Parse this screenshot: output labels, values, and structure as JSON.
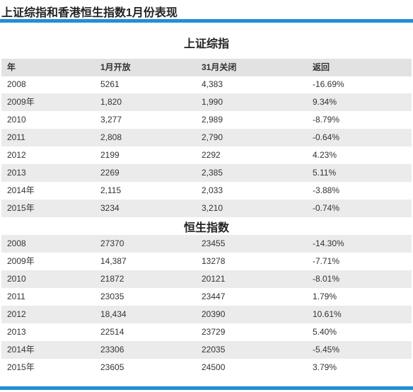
{
  "header": {
    "title": "上证综指和香港恒生指数1月份表现"
  },
  "columns": [
    "年",
    "1月开放",
    "31月关闭",
    "返回"
  ],
  "sections": [
    {
      "title": "上证综指",
      "rows": [
        [
          "2008",
          "5261",
          "4,383",
          "-16.69%"
        ],
        [
          "2009年",
          "1,820",
          "1,990",
          "9.34%"
        ],
        [
          "2010",
          "3,277",
          "2,989",
          "-8.79%"
        ],
        [
          "2011",
          "2,808",
          "2,790",
          "-0.64%"
        ],
        [
          "2012",
          "2199",
          "2292",
          "4.23%"
        ],
        [
          "2013",
          "2269",
          "2,385",
          "5.11%"
        ],
        [
          "2014年",
          "2,115",
          "2,033",
          "-3.88%"
        ],
        [
          "2015年",
          "3234",
          "3,210",
          "-0.74%"
        ]
      ]
    },
    {
      "title": "恒生指数",
      "rows": [
        [
          "2008",
          "27370",
          "23455",
          "-14.30%"
        ],
        [
          "2009年",
          "14,387",
          "13278",
          "-7.71%"
        ],
        [
          "2010",
          "21872",
          "20121",
          "-8.01%"
        ],
        [
          "2011",
          "23035",
          "23447",
          "1.79%"
        ],
        [
          "2012",
          "18,434",
          "20390",
          "10.61%"
        ],
        [
          "2013",
          "22514",
          "23729",
          "5.40%"
        ],
        [
          "2014年",
          "23306",
          "22035",
          "-5.45%"
        ],
        [
          "2015年",
          "23605",
          "24500",
          "3.79%"
        ]
      ]
    }
  ]
}
